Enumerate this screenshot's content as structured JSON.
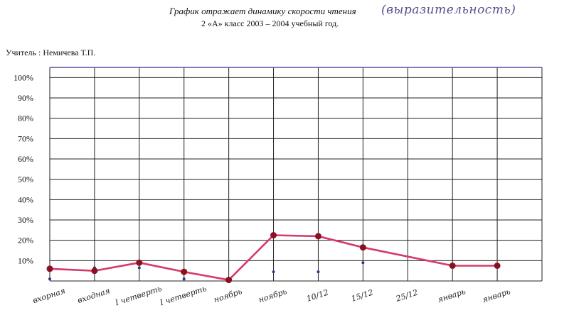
{
  "header": {
    "title": "График отражает динамику скорости чтения",
    "title_handwritten": "(выразительность)",
    "subtitle": "2 «А» класс 2003 – 2004 учебный год.",
    "teacher": "Учитель : Немичева Т.П."
  },
  "chart_data": {
    "type": "line",
    "title": "График отражает динамику скорости чтения (выразительность)",
    "subtitle": "2 «А» класс 2003 – 2004 учебный год.",
    "xlabel": "",
    "ylabel": "",
    "categories": [
      "вхорная",
      "входная",
      "I четверть",
      "I четверть",
      "ноябрь",
      "ноябрь",
      "10/12",
      "15/12",
      "25/12",
      "январь",
      "январь"
    ],
    "ylim": [
      0,
      105
    ],
    "y_ticks": [
      "10%",
      "20%",
      "30%",
      "40%",
      "50%",
      "60%",
      "70%",
      "80%",
      "90%",
      "100%"
    ],
    "y_tick_values": [
      10,
      20,
      30,
      40,
      50,
      60,
      70,
      80,
      90,
      100
    ],
    "series": [
      {
        "points": [
          {
            "x": 0,
            "y": 6
          },
          {
            "x": 1,
            "y": 5
          },
          {
            "x": 2,
            "y": 9
          },
          {
            "x": 3,
            "y": 4.5
          },
          {
            "x": 4,
            "y": 0.5
          },
          {
            "x": 5,
            "y": 22.5
          },
          {
            "x": 6,
            "y": 22
          },
          {
            "x": 7,
            "y": 16.5
          },
          {
            "x": 9,
            "y": 7.5
          },
          {
            "x": 10,
            "y": 7.5
          }
        ]
      }
    ],
    "secondary_points": [
      {
        "x": 0,
        "y": 1
      },
      {
        "x": 1,
        "y": 6.5
      },
      {
        "x": 2,
        "y": 6.5
      },
      {
        "x": 3,
        "y": 1
      },
      {
        "x": 5,
        "y": 4.5
      },
      {
        "x": 6,
        "y": 4.5
      },
      {
        "x": 7,
        "y": 9
      }
    ],
    "grid": true,
    "legend": "none",
    "colors": {
      "line": "#d63a6a",
      "marker": "#8b1020",
      "secondary_marker": "#2a3a8a",
      "grid": "#222222",
      "top_border": "#5b4fa8"
    }
  }
}
